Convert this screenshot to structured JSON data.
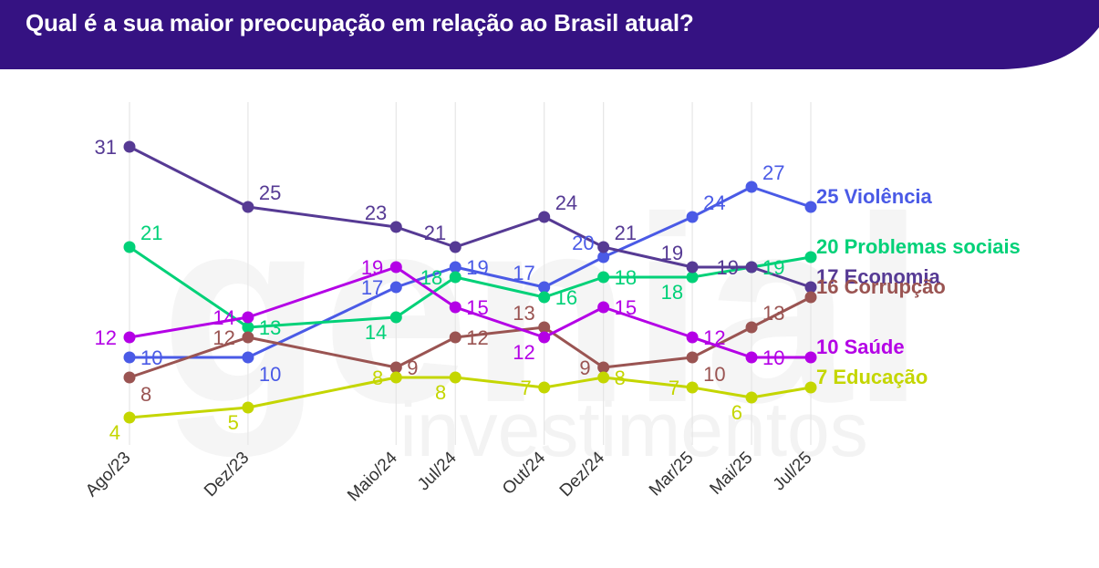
{
  "header": {
    "title": "Qual é a sua maior preocupação em relação ao Brasil atual?",
    "bg_color": "#351282"
  },
  "watermark": {
    "brand": "genial",
    "sub": "investimentos"
  },
  "chart_data": {
    "type": "line",
    "title": "Qual é a sua maior preocupação em relação ao Brasil atual?",
    "x": [
      "Ago/23",
      "Dez/23",
      "Maio/24",
      "Jul/24",
      "Out/24",
      "Dez/24",
      "Mar/25",
      "Mai/25",
      "Jul/25"
    ],
    "x_months": [
      0,
      4,
      9,
      11,
      14,
      16,
      19,
      21,
      23
    ],
    "ylim": [
      3,
      33
    ],
    "grid": "vertical",
    "legend": "end-of-line labels",
    "series": [
      {
        "name": "Violência",
        "color": "#4a5ae6",
        "values": [
          10,
          10,
          17,
          19,
          17,
          20,
          24,
          27,
          25
        ],
        "label_pos": [
          "right",
          "below-right",
          "left",
          "right",
          "above-left",
          "above-left",
          "above-right",
          "above-right",
          "end"
        ]
      },
      {
        "name": "Problemas sociais",
        "color": "#00d178",
        "values": [
          21,
          13,
          14,
          18,
          16,
          18,
          18,
          19,
          20
        ],
        "label_pos": [
          "above-right",
          "right",
          "below-left",
          "left",
          "right",
          "right",
          "below-left",
          "right",
          "end"
        ]
      },
      {
        "name": "Economia",
        "color": "#563a94",
        "values": [
          31,
          25,
          23,
          21,
          24,
          21,
          19,
          19,
          17
        ],
        "label_pos": [
          "left",
          "above-right",
          "above-left",
          "above-left",
          "above-right",
          "above-right",
          "above-left",
          "left",
          "end"
        ]
      },
      {
        "name": "Corrupção",
        "color": "#9a5452",
        "values": [
          8,
          12,
          9,
          12,
          13,
          9,
          10,
          13,
          16
        ],
        "label_pos": [
          "below-right",
          "left",
          "right",
          "right",
          "above-left",
          "left",
          "below-right",
          "above-right",
          "end"
        ]
      },
      {
        "name": "Saúde",
        "color": "#b400e6",
        "values": [
          12,
          14,
          19,
          15,
          12,
          15,
          12,
          10,
          10
        ],
        "label_pos": [
          "left",
          "left",
          "left",
          "right",
          "below-left",
          "right",
          "right",
          "right",
          "end"
        ]
      },
      {
        "name": "Educação",
        "color": "#c4d600",
        "values": [
          4,
          5,
          8,
          8,
          7,
          8,
          7,
          6,
          7
        ],
        "label_pos": [
          "below-left",
          "below-left",
          "left",
          "below-left",
          "left",
          "right",
          "left",
          "below-left",
          "end"
        ]
      }
    ]
  }
}
